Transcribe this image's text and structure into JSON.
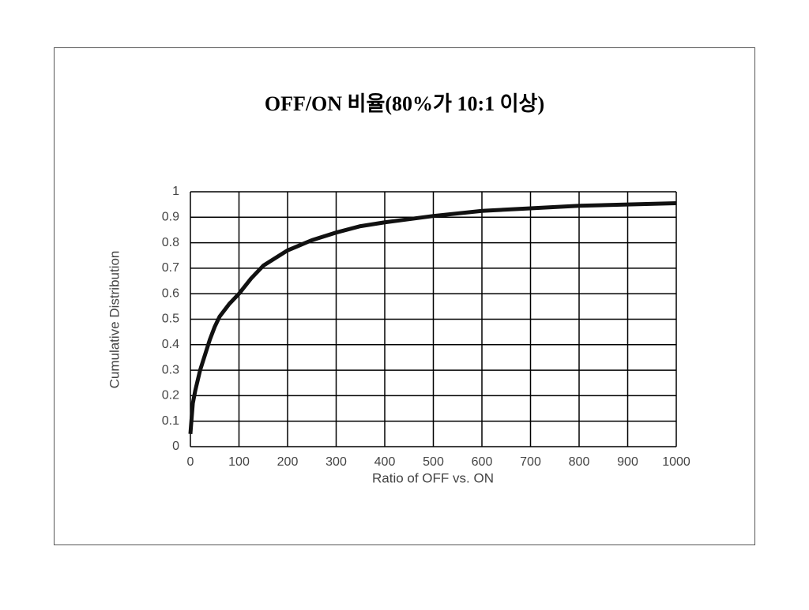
{
  "chart_data": {
    "type": "line",
    "title": "OFF/ON 비율(80%가 10:1 이상)",
    "x_label": "Ratio of OFF vs. ON",
    "y_label": "Cumulative Distribution",
    "x": [
      0,
      2,
      5,
      10,
      20,
      30,
      40,
      50,
      60,
      80,
      100,
      125,
      150,
      200,
      250,
      300,
      350,
      400,
      500,
      600,
      700,
      800,
      900,
      1000
    ],
    "values": [
      0.05,
      0.1,
      0.17,
      0.22,
      0.3,
      0.36,
      0.42,
      0.47,
      0.51,
      0.56,
      0.6,
      0.66,
      0.71,
      0.77,
      0.81,
      0.84,
      0.865,
      0.88,
      0.905,
      0.925,
      0.935,
      0.945,
      0.95,
      0.955
    ],
    "color": "#111111",
    "xlim": [
      0,
      1000
    ],
    "ylim": [
      0,
      1
    ],
    "xticks": [
      0,
      100,
      200,
      300,
      400,
      500,
      600,
      700,
      800,
      900,
      1000
    ],
    "yticks": [
      0,
      0.1,
      0.2,
      0.3,
      0.4,
      0.5,
      0.6,
      0.7,
      0.8,
      0.9,
      1
    ],
    "grid": true
  }
}
